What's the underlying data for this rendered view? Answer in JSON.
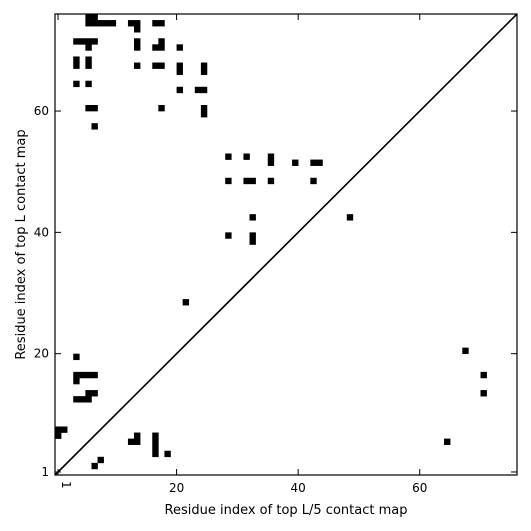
{
  "chart_data": {
    "type": "heatmap",
    "xlabel": "Residue index of top L/5 contact map",
    "ylabel": "Residue index of top L contact map",
    "xlim": [
      0,
      76
    ],
    "ylim": [
      0,
      76
    ],
    "x_ticks": [
      {
        "value": 0.5,
        "label": "1"
      },
      {
        "value": 20,
        "label": "20"
      },
      {
        "value": 40,
        "label": "40"
      },
      {
        "value": 60,
        "label": "60"
      }
    ],
    "y_ticks": [
      {
        "value": 0.5,
        "label": "1"
      },
      {
        "value": 20,
        "label": "20"
      },
      {
        "value": 40,
        "label": "40"
      },
      {
        "value": 60,
        "label": "60"
      }
    ],
    "diagonal": {
      "from": [
        0,
        0
      ],
      "to": [
        76,
        76
      ]
    },
    "cell_color": "#000000",
    "contacts_above_diagonal": [
      [
        5,
        74
      ],
      [
        6,
        74
      ],
      [
        7,
        74
      ],
      [
        8,
        74
      ],
      [
        9,
        74
      ],
      [
        12,
        74
      ],
      [
        13,
        74
      ],
      [
        16,
        74
      ],
      [
        17,
        74
      ],
      [
        5,
        75
      ],
      [
        6,
        75
      ],
      [
        13,
        73
      ],
      [
        3,
        71
      ],
      [
        4,
        71
      ],
      [
        5,
        71
      ],
      [
        6,
        71
      ],
      [
        13,
        71
      ],
      [
        17,
        71
      ],
      [
        5,
        70
      ],
      [
        13,
        70
      ],
      [
        16,
        70
      ],
      [
        17,
        70
      ],
      [
        20,
        70
      ],
      [
        3,
        68
      ],
      [
        5,
        68
      ],
      [
        3,
        67
      ],
      [
        5,
        67
      ],
      [
        13,
        67
      ],
      [
        16,
        67
      ],
      [
        17,
        67
      ],
      [
        20,
        67
      ],
      [
        24,
        67
      ],
      [
        20,
        66
      ],
      [
        24,
        66
      ],
      [
        3,
        64
      ],
      [
        5,
        64
      ],
      [
        20,
        63
      ],
      [
        23,
        63
      ],
      [
        24,
        63
      ],
      [
        5,
        60
      ],
      [
        6,
        60
      ],
      [
        17,
        60
      ],
      [
        24,
        60
      ],
      [
        24,
        59
      ],
      [
        6,
        57
      ],
      [
        28,
        52
      ],
      [
        31,
        52
      ],
      [
        35,
        52
      ],
      [
        35,
        51
      ],
      [
        39,
        51
      ],
      [
        42,
        51
      ],
      [
        43,
        51
      ],
      [
        28,
        48
      ],
      [
        31,
        48
      ],
      [
        32,
        48
      ],
      [
        35,
        48
      ],
      [
        42,
        48
      ],
      [
        48,
        42
      ],
      [
        32,
        42
      ],
      [
        28,
        39
      ],
      [
        32,
        39
      ],
      [
        32,
        38
      ],
      [
        21,
        28
      ]
    ],
    "contacts_below_diagonal": [
      [
        3,
        19
      ],
      [
        67,
        20
      ],
      [
        3,
        16
      ],
      [
        4,
        16
      ],
      [
        5,
        16
      ],
      [
        6,
        16
      ],
      [
        70,
        16
      ],
      [
        3,
        15
      ],
      [
        5,
        13
      ],
      [
        6,
        13
      ],
      [
        70,
        13
      ],
      [
        3,
        12
      ],
      [
        4,
        12
      ],
      [
        5,
        12
      ],
      [
        0,
        7
      ],
      [
        1,
        7
      ],
      [
        0,
        6
      ],
      [
        13,
        6
      ],
      [
        16,
        6
      ],
      [
        12,
        5
      ],
      [
        13,
        5
      ],
      [
        16,
        5
      ],
      [
        64,
        5
      ],
      [
        16,
        4
      ],
      [
        16,
        3
      ],
      [
        18,
        3
      ],
      [
        7,
        2
      ],
      [
        6,
        1
      ]
    ]
  }
}
